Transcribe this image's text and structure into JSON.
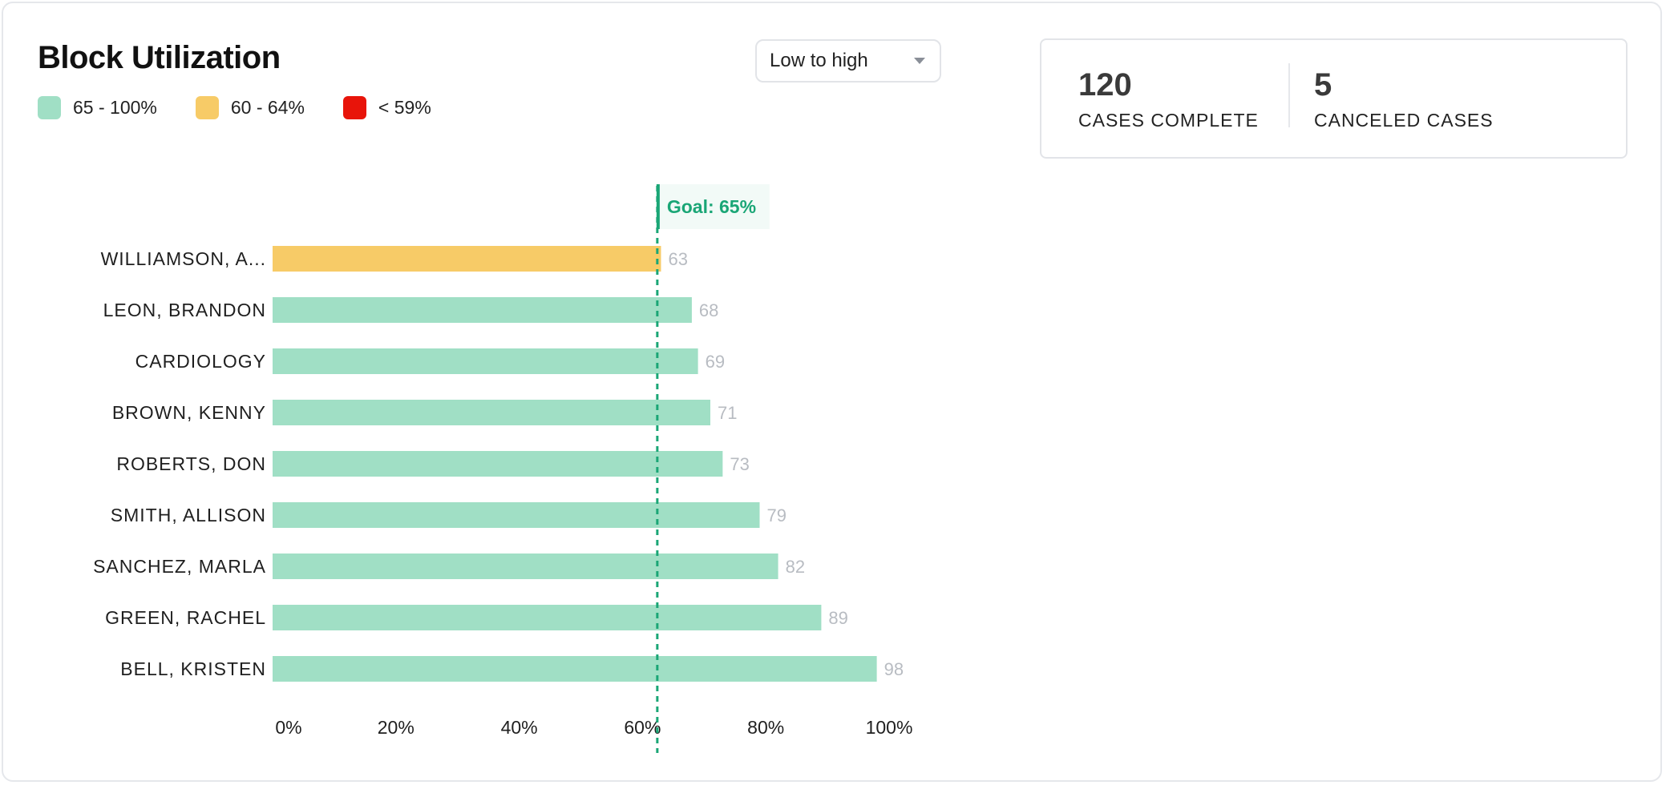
{
  "title": "Block Utilization",
  "legend": [
    {
      "label": "65 - 100%",
      "color": "#a0dfc5"
    },
    {
      "label": "60 - 64%",
      "color": "#f7cb67"
    },
    {
      "label": "< 59%",
      "color": "#e8140a"
    }
  ],
  "sort": {
    "selected": "Low to high",
    "icon": "chevron-down-icon"
  },
  "stats": [
    {
      "value": "120",
      "label": "CASES COMPLETE"
    },
    {
      "value": "5",
      "label": "CANCELED CASES"
    }
  ],
  "colors": {
    "good": "#a0dfc5",
    "warning": "#f7cb67",
    "bad": "#e8140a",
    "goal": "#1aa676"
  },
  "chart_data": {
    "type": "bar",
    "orientation": "horizontal",
    "categories": [
      "WILLIAMSON, A...",
      "LEON, BRANDON",
      "CARDIOLOGY",
      "BROWN, KENNY",
      "ROBERTS, DON",
      "SMITH, ALLISON",
      "SANCHEZ, MARLA",
      "GREEN, RACHEL",
      "BELL, KRISTEN"
    ],
    "values": [
      63,
      68,
      69,
      71,
      73,
      79,
      82,
      89,
      98
    ],
    "xlim": [
      0,
      100
    ],
    "xticks": [
      "0%",
      "20%",
      "40%",
      "60%",
      "80%",
      "100%"
    ],
    "goal": {
      "label": "Goal: 65%",
      "value": 65
    },
    "grid": false
  }
}
